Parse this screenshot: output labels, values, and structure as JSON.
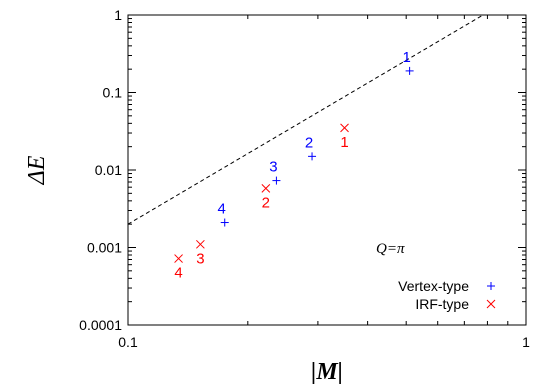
{
  "chart_data": {
    "type": "scatter",
    "x_scale": "log",
    "y_scale": "log",
    "xlim": [
      0.1,
      1
    ],
    "ylim": [
      0.0001,
      1
    ],
    "x_ticks": [
      "0.1",
      "1"
    ],
    "y_ticks": [
      "0.0001",
      "0.001",
      "0.01",
      "0.1",
      "1"
    ],
    "xlabel": "|M|",
    "ylabel": "ΔE",
    "annotation": "Q=π",
    "grid": false,
    "legend_position": "bottom-right",
    "fit_line": {
      "style": "dashed",
      "color": "#000000",
      "points": [
        [
          0.1,
          0.002
        ],
        [
          0.78,
          1
        ]
      ]
    },
    "series": [
      {
        "name": "Vertex-type",
        "marker": "plus",
        "color": "#0000ff",
        "points": [
          {
            "x": 0.51,
            "y": 0.19,
            "label": "1"
          },
          {
            "x": 0.29,
            "y": 0.015,
            "label": "2"
          },
          {
            "x": 0.236,
            "y": 0.0073,
            "label": "3"
          },
          {
            "x": 0.175,
            "y": 0.0021,
            "label": "4"
          }
        ]
      },
      {
        "name": "IRF-type",
        "marker": "cross",
        "color": "#ff0000",
        "points": [
          {
            "x": 0.35,
            "y": 0.035,
            "label": "1"
          },
          {
            "x": 0.222,
            "y": 0.0058,
            "label": "2"
          },
          {
            "x": 0.152,
            "y": 0.0011,
            "label": "3"
          },
          {
            "x": 0.134,
            "y": 0.00072,
            "label": "4"
          }
        ]
      }
    ]
  }
}
